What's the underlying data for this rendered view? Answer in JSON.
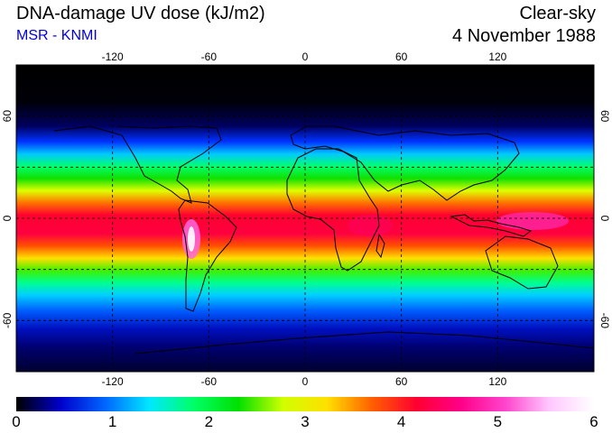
{
  "header": {
    "title": "DNA-damage UV dose (kJ/m2)",
    "credit": "MSR - KNMI",
    "condition": "Clear-sky",
    "date": "4 November 1988"
  },
  "map": {
    "lon_ticks": [
      "-120",
      "-60",
      "0",
      "60",
      "120"
    ],
    "lat_ticks_left": [
      "60",
      "0",
      "-60"
    ],
    "lat_ticks_right": [
      "60",
      "0",
      "-60"
    ],
    "lon_values": [
      -120,
      -60,
      0,
      60,
      120
    ],
    "lat_values": [
      60,
      0,
      -60
    ],
    "lon_range": [
      -180,
      180
    ],
    "lat_range": [
      -90,
      90
    ]
  },
  "colorbar": {
    "labels": [
      "0",
      "1",
      "2",
      "3",
      "4",
      "5",
      "6"
    ],
    "min": 0,
    "max": 6,
    "stops": [
      "#000000",
      "#0000cc",
      "#0066ff",
      "#00e8ff",
      "#00ff66",
      "#00e000",
      "#d0ff00",
      "#ffe000",
      "#ff6000",
      "#ff0030",
      "#ff0088",
      "#ff44cc",
      "#ffc8ff",
      "#ffffff"
    ]
  }
}
